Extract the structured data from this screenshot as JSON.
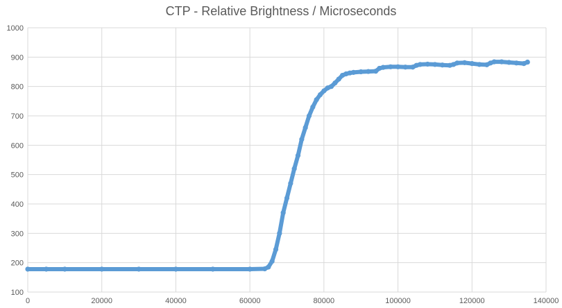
{
  "chart_data": {
    "type": "scatter",
    "title": "CTP - Relative Brightness / Microseconds",
    "xlabel": "",
    "ylabel": "",
    "xlim": [
      0,
      140000
    ],
    "ylim": [
      100,
      1000
    ],
    "xticks": [
      0,
      20000,
      40000,
      60000,
      80000,
      100000,
      120000,
      140000
    ],
    "yticks": [
      100,
      200,
      300,
      400,
      500,
      600,
      700,
      800,
      900,
      1000
    ],
    "xtick_labels": [
      "0",
      "20000",
      "40000",
      "60000",
      "80000",
      "100000",
      "120000",
      "140000"
    ],
    "ytick_labels": [
      "100",
      "200",
      "300",
      "400",
      "500",
      "600",
      "700",
      "800",
      "900",
      "1000"
    ],
    "grid": true,
    "legend": "none",
    "marker_color": "#5B9BD5",
    "grid_color": "#d9d9d9",
    "series": [
      {
        "x": [
          0,
          5000,
          10000,
          20000,
          30000,
          40000,
          50000,
          60000,
          64000,
          65000,
          66000,
          67000,
          68000,
          69000,
          70000,
          71000,
          72000,
          73000,
          74000,
          75000,
          76000,
          77000,
          78000,
          79000,
          80000,
          81000,
          82000,
          83000,
          84000,
          85000,
          86000,
          87000,
          88000,
          90000,
          92000,
          94000,
          95000,
          96000,
          98000,
          100000,
          102000,
          104000,
          105000,
          106000,
          108000,
          110000,
          112000,
          114000,
          115000,
          116000,
          118000,
          120000,
          122000,
          124000,
          125000,
          126000,
          128000,
          130000,
          132000,
          134000,
          135000
        ],
        "y": [
          178,
          178,
          178,
          178,
          178,
          178,
          178,
          178,
          179,
          185,
          205,
          245,
          300,
          370,
          420,
          470,
          520,
          565,
          620,
          660,
          700,
          730,
          755,
          772,
          785,
          795,
          800,
          812,
          825,
          838,
          843,
          846,
          848,
          850,
          851,
          852,
          862,
          865,
          867,
          867,
          866,
          866,
          872,
          875,
          876,
          875,
          873,
          872,
          875,
          880,
          881,
          878,
          875,
          874,
          880,
          884,
          884,
          882,
          880,
          878,
          883
        ]
      }
    ]
  }
}
